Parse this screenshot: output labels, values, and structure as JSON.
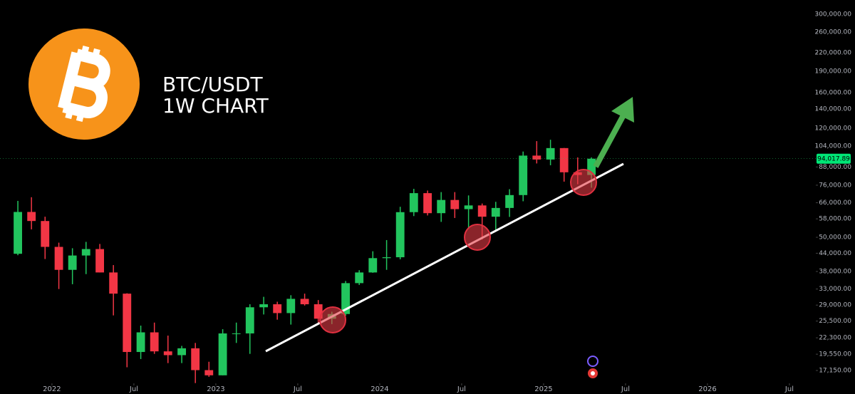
{
  "chart_data": {
    "type": "candlestick",
    "title": "BTC/USDT",
    "subtitle": "1W CHART",
    "x": [
      2021.792,
      2021.875,
      2021.958,
      2022.042,
      2022.125,
      2022.208,
      2022.292,
      2022.375,
      2022.458,
      2022.542,
      2022.625,
      2022.708,
      2022.792,
      2022.875,
      2022.958,
      2023.042,
      2023.125,
      2023.208,
      2023.292,
      2023.375,
      2023.458,
      2023.542,
      2023.625,
      2023.708,
      2023.792,
      2023.875,
      2023.958,
      2024.042,
      2024.125,
      2024.208,
      2024.292,
      2024.375,
      2024.458,
      2024.542,
      2024.625,
      2024.708,
      2024.792,
      2024.875,
      2024.958,
      2025.042,
      2025.125,
      2025.208,
      2025.292
    ],
    "open": [
      43800,
      61300,
      57000,
      46300,
      38500,
      43200,
      45500,
      37700,
      31800,
      19900,
      23300,
      20000,
      19400,
      20500,
      17200,
      16500,
      23100,
      23100,
      28500,
      29200,
      27200,
      30500,
      29200,
      26000,
      27000,
      34600,
      37700,
      42300,
      42600,
      61200,
      71300,
      60700,
      67500,
      62700,
      64600,
      59000,
      63300,
      70200,
      96400,
      93400,
      102400,
      84300,
      82500
    ],
    "high": [
      67000,
      69000,
      59000,
      47900,
      45800,
      48200,
      47400,
      40000,
      31900,
      24600,
      25200,
      22700,
      20900,
      21400,
      18400,
      23900,
      25200,
      29200,
      31000,
      29800,
      31400,
      31800,
      30200,
      27500,
      35200,
      38400,
      44700,
      48900,
      63900,
      73800,
      72800,
      71900,
      71900,
      70000,
      65600,
      66500,
      73600,
      99600,
      108300,
      109500,
      102500,
      95000,
      95000
    ],
    "low": [
      43300,
      53300,
      42000,
      33000,
      34300,
      37200,
      37700,
      26700,
      17600,
      18800,
      19600,
      18200,
      18200,
      15500,
      16300,
      16500,
      21400,
      19600,
      26900,
      25800,
      24800,
      28900,
      25200,
      24900,
      26600,
      34100,
      37600,
      38500,
      41900,
      59300,
      59600,
      56600,
      58400,
      53500,
      49100,
      52500,
      58900,
      66800,
      90500,
      89200,
      78200,
      76600,
      74500
    ],
    "close": [
      61300,
      57000,
      46300,
      38500,
      43200,
      45500,
      37700,
      31800,
      19900,
      23300,
      20000,
      19400,
      20500,
      17200,
      16500,
      23100,
      23100,
      28500,
      29200,
      27200,
      30500,
      29200,
      26000,
      27000,
      34600,
      37700,
      42300,
      42600,
      61200,
      71300,
      60700,
      67500,
      62700,
      64600,
      59000,
      63300,
      70200,
      96400,
      93400,
      102400,
      84300,
      82500,
      94017.89
    ],
    "last_price_label": "94,017.89",
    "up_color": "#22c55e",
    "down_color": "#f23645",
    "xlim": [
      2021.683,
      2026.661
    ],
    "xticks": [
      2022,
      {
        "value": 2022.5,
        "label": "Jul"
      },
      2023,
      {
        "value": 2023.5,
        "label": "Jul"
      },
      2024,
      {
        "value": 2024.5,
        "label": "Jul"
      },
      2025,
      {
        "value": 2025.5,
        "label": "Jul"
      },
      2026,
      {
        "value": 2026.5,
        "label": "Jul"
      }
    ],
    "ylim": [
      15740,
      336500
    ],
    "log_scale": true,
    "grid": false,
    "yticks": [
      {
        "value": 300000,
        "label": "300,000.00"
      },
      {
        "value": 260000,
        "label": "260,000.00"
      },
      {
        "value": 220000,
        "label": "220,000.00"
      },
      {
        "value": 190000,
        "label": "190,000.00"
      },
      {
        "value": 160000,
        "label": "160,000.00"
      },
      {
        "value": 140000,
        "label": "140,000.00"
      },
      {
        "value": 120000,
        "label": "120,000.00"
      },
      {
        "value": 104000,
        "label": "104,000.00"
      },
      {
        "value": 88000,
        "label": "88,000.00"
      },
      {
        "value": 76000,
        "label": "76,000.00"
      },
      {
        "value": 66000,
        "label": "66,000.00"
      },
      {
        "value": 58000,
        "label": "58,000.00"
      },
      {
        "value": 50000,
        "label": "50,000.00"
      },
      {
        "value": 44000,
        "label": "44,000.00"
      },
      {
        "value": 38000,
        "label": "38,000.00"
      },
      {
        "value": 33000,
        "label": "33,000.00"
      },
      {
        "value": 29000,
        "label": "29,000.00"
      },
      {
        "value": 25500,
        "label": "25,500.00"
      },
      {
        "value": 22300,
        "label": "22,300.00"
      },
      {
        "value": 19550,
        "label": "19,550.00"
      },
      {
        "value": 17150,
        "label": "17,150.00"
      }
    ]
  }
}
